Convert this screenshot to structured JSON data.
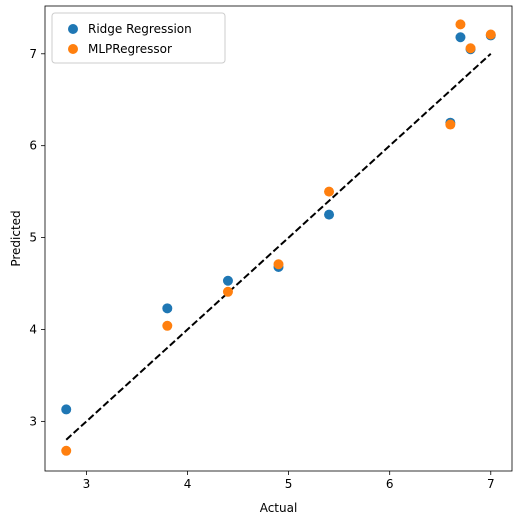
{
  "chart_data": {
    "type": "scatter",
    "xlabel": "Actual",
    "ylabel": "Predicted",
    "xlim": [
      2.59,
      7.21
    ],
    "ylim": [
      2.46,
      7.52
    ],
    "xticks": [
      3,
      4,
      5,
      6,
      7
    ],
    "yticks": [
      3,
      4,
      5,
      6,
      7
    ],
    "grid": false,
    "legend_position": "top-left",
    "reference_line": {
      "x": [
        2.8,
        7.0
      ],
      "y": [
        2.8,
        7.0
      ],
      "style": "dashed",
      "color": "#000000"
    },
    "series": [
      {
        "name": "Ridge Regression",
        "color": "#1f77b4",
        "points": [
          [
            2.8,
            3.13
          ],
          [
            3.8,
            4.23
          ],
          [
            4.4,
            4.53
          ],
          [
            4.9,
            4.68
          ],
          [
            5.4,
            5.25
          ],
          [
            6.6,
            6.25
          ],
          [
            6.7,
            7.18
          ],
          [
            6.8,
            7.05
          ],
          [
            7.0,
            7.2
          ]
        ]
      },
      {
        "name": "MLPRegressor",
        "color": "#ff7f0e",
        "points": [
          [
            2.8,
            2.68
          ],
          [
            3.8,
            4.04
          ],
          [
            4.4,
            4.41
          ],
          [
            4.9,
            4.71
          ],
          [
            5.4,
            5.5
          ],
          [
            6.6,
            6.23
          ],
          [
            6.7,
            7.32
          ],
          [
            6.8,
            7.06
          ],
          [
            7.0,
            7.21
          ]
        ]
      }
    ]
  }
}
